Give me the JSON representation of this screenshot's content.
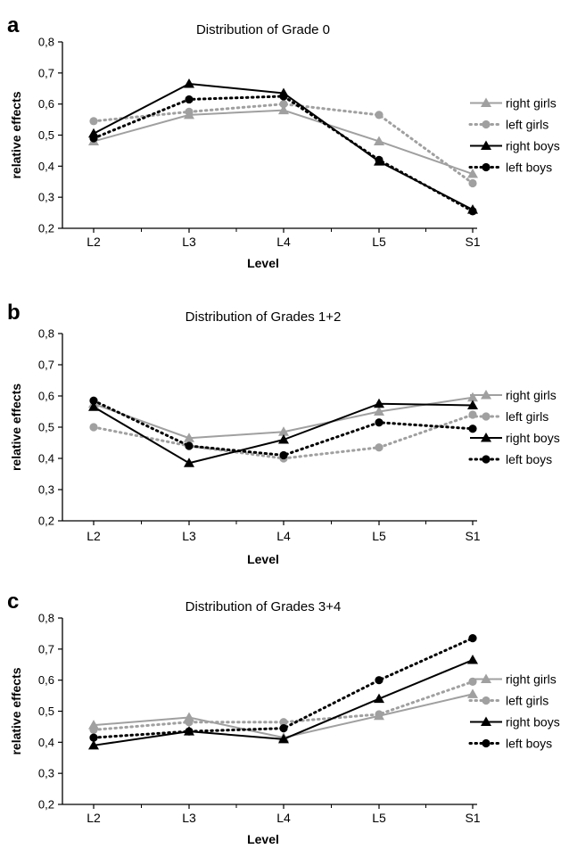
{
  "colors": {
    "gray": "#a0a0a0",
    "black": "#000000"
  },
  "series_styles": [
    {
      "name": "right girls",
      "color": "#a0a0a0",
      "dash": "solid",
      "marker": "triangle"
    },
    {
      "name": "left girls",
      "color": "#a0a0a0",
      "dash": "dotted",
      "marker": "circle"
    },
    {
      "name": "right boys",
      "color": "#000000",
      "dash": "solid",
      "marker": "triangle"
    },
    {
      "name": "left boys",
      "color": "#000000",
      "dash": "dotted",
      "marker": "circle"
    }
  ],
  "chart_data": [
    {
      "type": "line",
      "panel": "a",
      "title": "Distribution of Grade 0",
      "xlabel": "Level",
      "ylabel": "relative effects",
      "categories": [
        "L2",
        "L3",
        "L4",
        "L5",
        "S1"
      ],
      "ylim": [
        0.2,
        0.8
      ],
      "yticks": [
        "0,2",
        "0,3",
        "0,4",
        "0,5",
        "0,6",
        "0,7",
        "0,8"
      ],
      "grid": false,
      "legend": "right",
      "series": [
        {
          "name": "right girls",
          "values": [
            0.48,
            0.565,
            0.58,
            0.48,
            0.375
          ]
        },
        {
          "name": "left girls",
          "values": [
            0.545,
            0.575,
            0.6,
            0.565,
            0.345
          ]
        },
        {
          "name": "right boys",
          "values": [
            0.505,
            0.665,
            0.635,
            0.415,
            0.26
          ]
        },
        {
          "name": "left boys",
          "values": [
            0.49,
            0.615,
            0.625,
            0.42,
            0.255
          ]
        }
      ]
    },
    {
      "type": "line",
      "panel": "b",
      "title": "Distribution of Grades 1+2",
      "xlabel": "Level",
      "ylabel": "relative effects",
      "categories": [
        "L2",
        "L3",
        "L4",
        "L5",
        "S1"
      ],
      "ylim": [
        0.2,
        0.8
      ],
      "yticks": [
        "0,2",
        "0,3",
        "0,4",
        "0,5",
        "0,6",
        "0,7",
        "0,8"
      ],
      "grid": false,
      "legend": "right",
      "series": [
        {
          "name": "right girls",
          "values": [
            0.575,
            0.465,
            0.485,
            0.55,
            0.595
          ]
        },
        {
          "name": "left girls",
          "values": [
            0.5,
            0.44,
            0.4,
            0.435,
            0.54
          ]
        },
        {
          "name": "right boys",
          "values": [
            0.565,
            0.385,
            0.46,
            0.575,
            0.57
          ]
        },
        {
          "name": "left boys",
          "values": [
            0.585,
            0.44,
            0.41,
            0.515,
            0.495
          ]
        }
      ]
    },
    {
      "type": "line",
      "panel": "c",
      "title": "Distribution of Grades 3+4",
      "xlabel": "Level",
      "ylabel": "relative effects",
      "categories": [
        "L2",
        "L3",
        "L4",
        "L5",
        "S1"
      ],
      "ylim": [
        0.2,
        0.8
      ],
      "yticks": [
        "0,2",
        "0,3",
        "0,4",
        "0,5",
        "0,6",
        "0,7",
        "0,8"
      ],
      "grid": false,
      "legend": "right",
      "series": [
        {
          "name": "right girls",
          "values": [
            0.455,
            0.48,
            0.415,
            0.485,
            0.555
          ]
        },
        {
          "name": "left girls",
          "values": [
            0.44,
            0.465,
            0.465,
            0.49,
            0.595
          ]
        },
        {
          "name": "right boys",
          "values": [
            0.39,
            0.435,
            0.41,
            0.54,
            0.665
          ]
        },
        {
          "name": "left boys",
          "values": [
            0.415,
            0.435,
            0.445,
            0.6,
            0.735
          ]
        }
      ]
    }
  ]
}
